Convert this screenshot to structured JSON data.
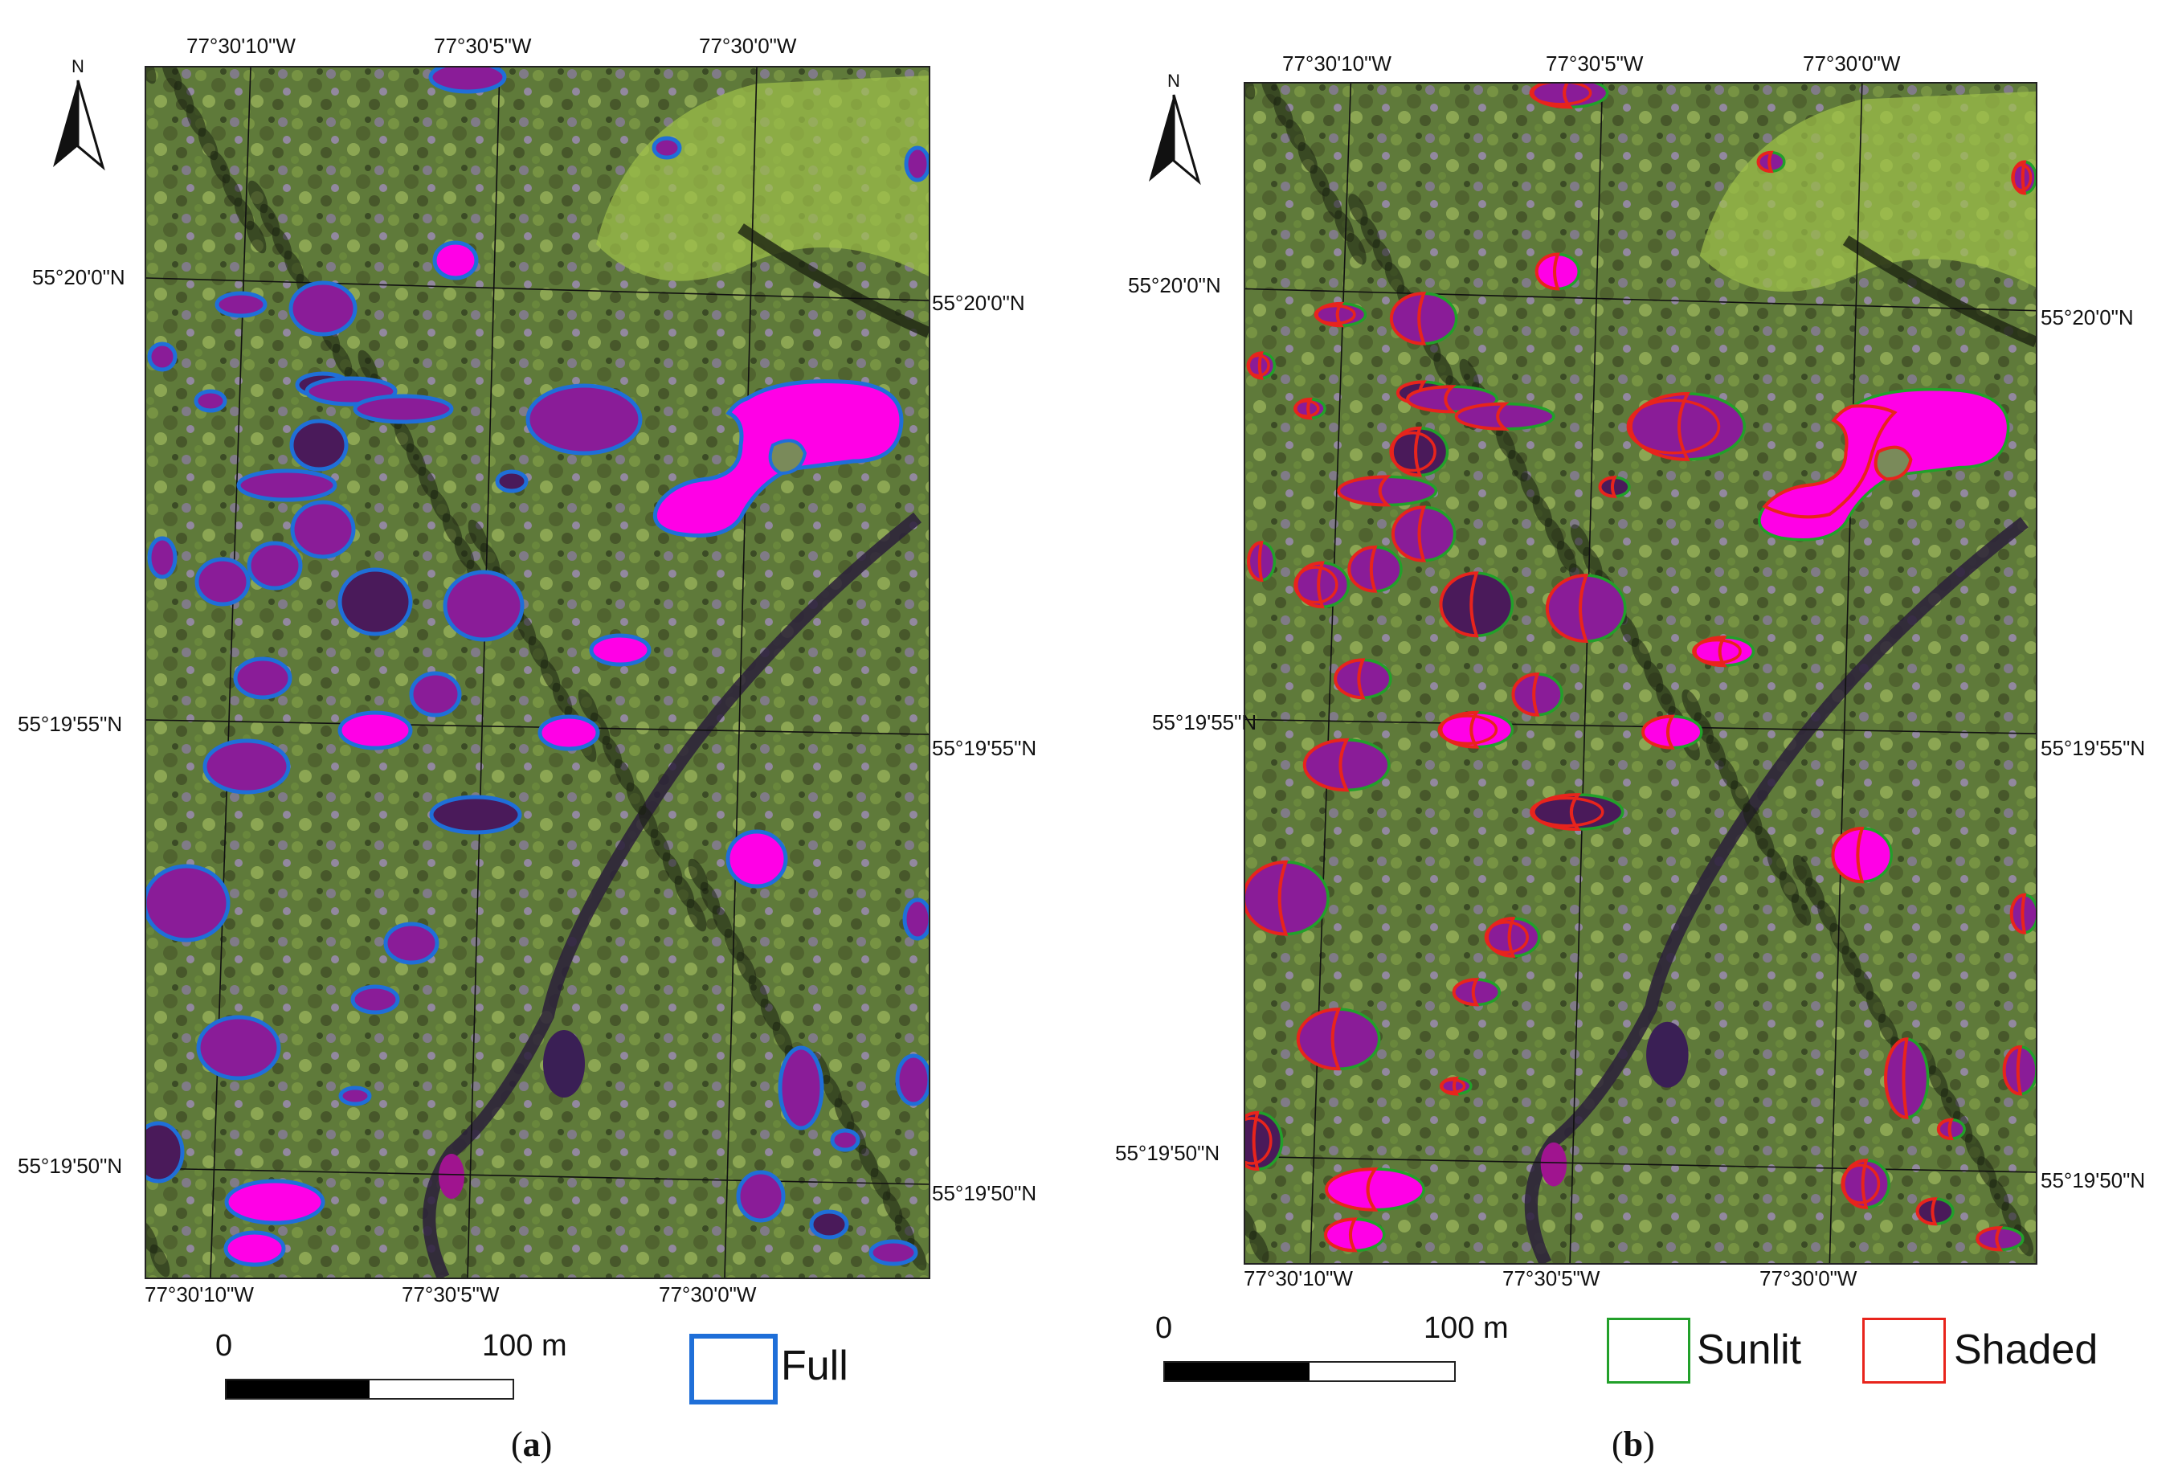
{
  "panels": [
    {
      "id": "a",
      "caption_open": "(",
      "caption_letter": "a",
      "caption_close": ")",
      "north_label": "N",
      "top_lon_labels": [
        "77°30'10\"W",
        "77°30'5\"W",
        "77°30'0\"W"
      ],
      "bottom_lon_labels": [
        "77°30'10\"W",
        "77°30'5\"W",
        "77°30'0\"W"
      ],
      "left_lat_labels": [
        "55°20'0\"N",
        "55°19'55\"N",
        "55°19'50\"N"
      ],
      "right_lat_labels": [
        "55°20'0\"N",
        "55°19'55\"N",
        "55°19'50\"N"
      ],
      "scale_start": "0",
      "scale_end": "100 m",
      "legend": [
        {
          "label": "Full",
          "color": "#1f6fd8"
        }
      ]
    },
    {
      "id": "b",
      "caption_open": "(",
      "caption_letter": "b",
      "caption_close": ")",
      "north_label": "N",
      "top_lon_labels": [
        "77°30'10\"W",
        "77°30'5\"W",
        "77°30'0\"W"
      ],
      "bottom_lon_labels": [
        "77°30'10\"W",
        "77°30'5\"W",
        "77°30'0\"W"
      ],
      "left_lat_labels": [
        "55°20'0\"N",
        "55°19'55\"N",
        "55°19'50\"N"
      ],
      "right_lat_labels": [
        "55°20'0\"N",
        "55°19'55\"N",
        "55°19'50\"N"
      ],
      "scale_start": "0",
      "scale_end": "100 m",
      "legend": [
        {
          "label": "Sunlit",
          "color": "#22a02a"
        },
        {
          "label": "Shaded",
          "color": "#e8241c"
        }
      ]
    }
  ],
  "colors": {
    "vegetation": "#5f7a3a",
    "water_deep": "#4a1a5a",
    "water_purple": "#8a1c98",
    "water_magenta": "#ff00e6",
    "outline_full": "#1f6fd8",
    "outline_sunlit": "#22a02a",
    "outline_shaded": "#e8241c"
  }
}
